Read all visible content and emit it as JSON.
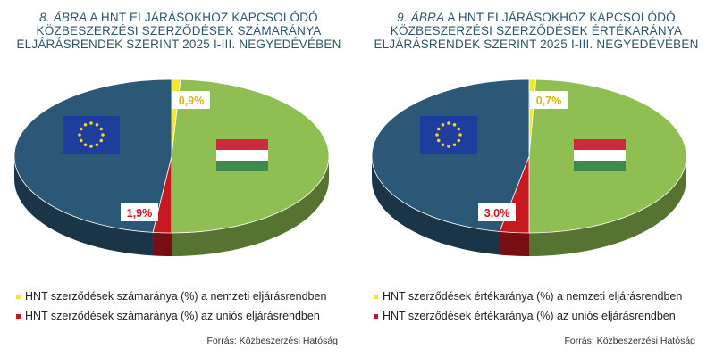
{
  "chart_data": [
    {
      "type": "pie",
      "title_number": "8. ábra",
      "title_rest": "A HNT eljárásokhoz kapcsolódó közbeszerzési szerződések számaránya eljárásrendek szerint 2025 I-III. negyedévében",
      "slices": [
        {
          "name": "HNT szerződések számaránya (%) a nemzeti eljárásrendben",
          "value": 0.9,
          "label": "0,9%",
          "color": "#f2e82a"
        },
        {
          "name": "HNT szerződések számaránya (%) az uniós eljárásrendben",
          "value": 1.9,
          "label": "1,9%",
          "color": "#c8181f"
        }
      ],
      "source": "Forrás: Közbeszerzési Hatóság"
    },
    {
      "type": "pie",
      "title_number": "9. ábra",
      "title_rest": "A HNT eljárásokhoz kapcsolódó közbeszerzési szerződések értékaránya eljárásrendek szerint 2025 I-III. negyedévében",
      "slices": [
        {
          "name": "HNT szerződések értékaránya (%) a nemzeti eljárásrendben",
          "value": 0.7,
          "label": "0,7%",
          "color": "#f2e82a"
        },
        {
          "name": "HNT szerződések értékaránya (%) az uniós eljárásrendben",
          "value": 3.0,
          "label": "3,0%",
          "color": "#c8181f"
        }
      ],
      "source": "Forrás: Közbeszerzési Hatóság"
    }
  ],
  "colors": {
    "national_half": "#8fbf52",
    "eu_half": "#2b5877",
    "title": "#2d5468"
  },
  "icons": {
    "eu_half": "eu-flag-icon",
    "national_half": "hungarian-flag-icon"
  }
}
